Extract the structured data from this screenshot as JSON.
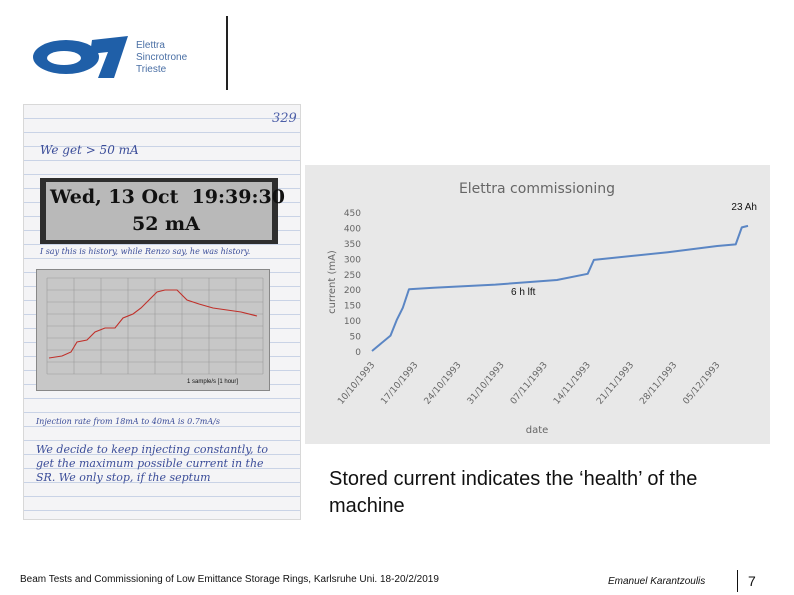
{
  "header": {
    "logo_lines": [
      "Elettra",
      "Sincrotrone",
      "Trieste"
    ]
  },
  "notebook": {
    "page_number": "329",
    "line_we_get": "We get > 50 mA",
    "display_date": "Wed, 13 Oct",
    "display_time": "19:39:30",
    "display_current": "52 mA",
    "note_history": "I say this is history, while Renzo say, he was history.",
    "strip_label": "1 sample/s [1 hour]",
    "injection_note": "Injection rate from 18mA to 40mA is 0.7mA/s",
    "decide_note": "We decide to keep injecting constantly, to get the maximum possible current in the SR. We only stop, if the septum"
  },
  "chart_data": {
    "type": "line",
    "title": "Elettra commissioning",
    "xlabel": "date",
    "ylabel": "current (mA)",
    "ylim": [
      0,
      450
    ],
    "yticks": [
      0,
      50,
      100,
      150,
      200,
      250,
      300,
      350,
      400,
      450
    ],
    "xticks": [
      "10/10/1993",
      "17/10/1993",
      "24/10/1993",
      "31/10/1993",
      "07/11/1993",
      "14/11/1993",
      "21/11/1993",
      "28/11/1993",
      "05/12/1993"
    ],
    "x": [
      "10/10/1993",
      "13/10/1993",
      "14/10/1993",
      "15/10/1993",
      "16/10/1993",
      "20/10/1993",
      "30/10/1993",
      "09/11/1993",
      "14/11/1993",
      "15/11/1993",
      "27/11/1993",
      "05/12/1993",
      "08/12/1993",
      "09/12/1993",
      "10/12/1993"
    ],
    "series": [
      {
        "values": [
          0,
          50,
          100,
          140,
          200,
          205,
          215,
          230,
          250,
          295,
          320,
          340,
          345,
          400,
          405
        ]
      }
    ],
    "annotations": [
      "23 Ah",
      "6 h lft"
    ],
    "grid": false,
    "line_color": "#5b86c4"
  },
  "caption": "Stored current indicates the ‘health’ of the machine",
  "footer": {
    "event": "Beam Tests and Commissioning of Low Emittance Storage Rings, Karlsruhe Uni. 18-20/2/2019",
    "author": "Emanuel Karantzoulis",
    "page": "7"
  }
}
